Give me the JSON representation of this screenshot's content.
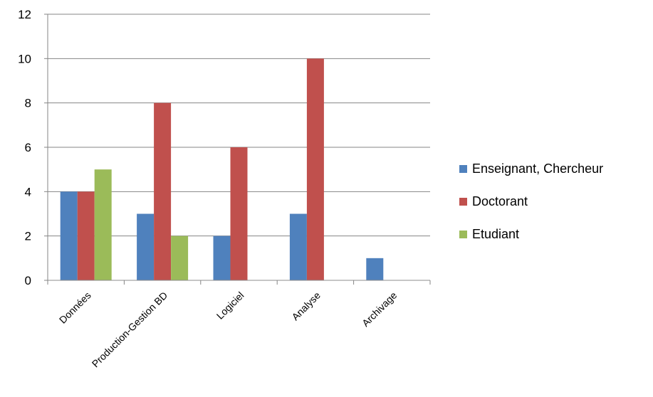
{
  "chart_data": {
    "type": "bar",
    "categories": [
      "Données",
      "Production-Gestion BD",
      "Logiciel",
      "Analyse",
      "Archivage"
    ],
    "series": [
      {
        "name": "Enseignant, Chercheur",
        "color": "#4F81BD",
        "values": [
          4,
          3,
          2,
          3,
          1
        ]
      },
      {
        "name": "Doctorant",
        "color": "#C0504D",
        "values": [
          4,
          8,
          6,
          10,
          0
        ]
      },
      {
        "name": "Etudiant",
        "color": "#9BBB59",
        "values": [
          5,
          2,
          0,
          0,
          0
        ]
      }
    ],
    "ylim": [
      0,
      12
    ],
    "yticks": [
      0,
      2,
      4,
      6,
      8,
      10,
      12
    ],
    "grid": true,
    "legend_position": "right"
  }
}
